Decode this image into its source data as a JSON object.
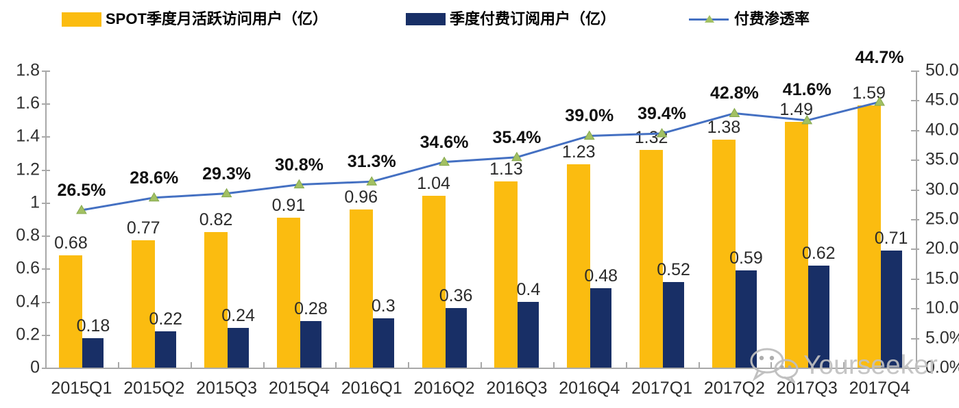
{
  "colors": {
    "mau_bar": "#FBBC10",
    "sub_bar": "#182F66",
    "line": "#4470C2",
    "marker_fill": "#A2C063",
    "marker_edge": "#85A84D",
    "axis": "#A8A8A8",
    "watermark": "#C6C6C6"
  },
  "watermark": {
    "icon": "wechat-icon",
    "text": "Yourseeker"
  },
  "chart_data": {
    "type": "bar",
    "subtype": "combo-bar-line",
    "title": "",
    "grid": false,
    "legend_position": "top",
    "categories": [
      "2015Q1",
      "2015Q2",
      "2015Q3",
      "2015Q4",
      "2016Q1",
      "2016Q2",
      "2016Q3",
      "2016Q4",
      "2017Q1",
      "2017Q2",
      "2017Q3",
      "2017Q4"
    ],
    "series": [
      {
        "name": "SPOT季度月活跃访问用户（亿）",
        "type": "bar",
        "axis": "left",
        "color": "#FBBC10",
        "values": [
          0.68,
          0.77,
          0.82,
          0.91,
          0.96,
          1.04,
          1.13,
          1.23,
          1.32,
          1.38,
          1.49,
          1.59
        ],
        "labels": [
          "0.68",
          "0.77",
          "0.82",
          "0.91",
          "0.96",
          "1.04",
          "1.13",
          "1.23",
          "1.32",
          "1.38",
          "1.49",
          "1.59"
        ]
      },
      {
        "name": "季度付费订阅用户（亿）",
        "type": "bar",
        "axis": "left",
        "color": "#182F66",
        "values": [
          0.18,
          0.22,
          0.24,
          0.28,
          0.3,
          0.36,
          0.4,
          0.48,
          0.52,
          0.59,
          0.62,
          0.71
        ],
        "labels": [
          "0.18",
          "0.22",
          "0.24",
          "0.28",
          "0.3",
          "0.36",
          "0.4",
          "0.48",
          "0.52",
          "0.59",
          "0.62",
          "0.71"
        ]
      },
      {
        "name": "付费渗透率",
        "type": "line",
        "axis": "right",
        "color": "#4470C2",
        "marker": "triangle",
        "marker_color": "#A2C063",
        "values": [
          26.5,
          28.6,
          29.3,
          30.8,
          31.3,
          34.6,
          35.4,
          39.0,
          39.4,
          42.8,
          41.6,
          44.7
        ],
        "labels": [
          "26.5%",
          "28.6%",
          "29.3%",
          "30.8%",
          "31.3%",
          "34.6%",
          "35.4%",
          "39.0%",
          "39.4%",
          "42.8%",
          "41.6%",
          "44.7%"
        ]
      }
    ],
    "left_axis": {
      "min": 0,
      "max": 1.8,
      "tick_values": [
        1.8,
        1.6,
        1.4,
        1.2,
        1.0,
        0.8,
        0.6,
        0.4,
        0.2,
        0
      ],
      "tick_labels": [
        "1.8",
        "1.6",
        "1.4",
        "1.2",
        "1",
        "0.8",
        "0.6",
        "0.4",
        "0.2",
        "0"
      ]
    },
    "right_axis": {
      "min": 0,
      "max": 50,
      "tick_values": [
        50,
        45,
        40,
        35,
        30,
        25,
        20,
        15,
        10,
        5,
        0
      ],
      "tick_labels": [
        "50.0%",
        "45.0%",
        "40.0%",
        "35.0%",
        "30.0%",
        "25.0%",
        "20.0%",
        "15.0%",
        "10.0%",
        "5.0%",
        "0.0%"
      ]
    }
  }
}
